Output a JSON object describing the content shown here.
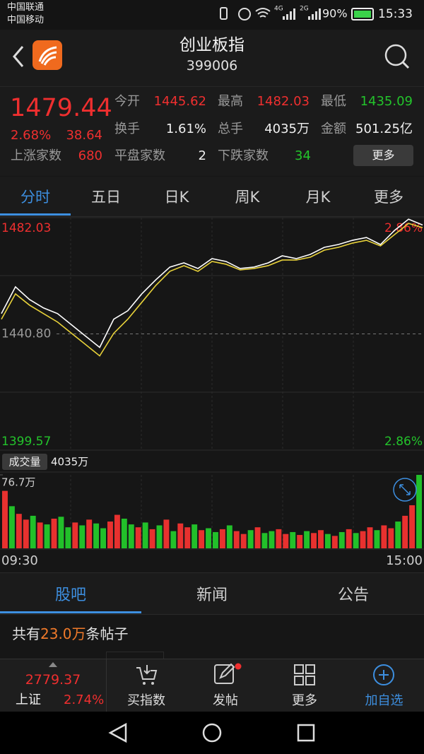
{
  "status_bar": {
    "carriers": [
      "中国联通",
      "中国移动"
    ],
    "network_labels": [
      "4G",
      "2G"
    ],
    "battery": "90%",
    "time": "15:33"
  },
  "header": {
    "title": "创业板指",
    "code": "399006"
  },
  "quote": {
    "price": "1479.44",
    "change_percent": "2.68%",
    "change": "38.64",
    "stats": [
      [
        "今开",
        "1445.62"
      ],
      [
        "最高",
        "1482.03"
      ],
      [
        "最低",
        "1435.09"
      ],
      [
        "换手",
        "1.61%"
      ],
      [
        "总手",
        "4035万"
      ],
      [
        "金额",
        "501.25亿"
      ]
    ],
    "breadth": [
      [
        "上涨家数",
        "680"
      ],
      [
        "平盘家数",
        "2"
      ],
      [
        "下跌家数",
        "34"
      ]
    ],
    "more": "更多"
  },
  "period_tabs": [
    "分时",
    "五日",
    "日K",
    "周K",
    "月K",
    "更多"
  ],
  "volume_label": "成交量",
  "volume_total": "4035万",
  "chart_data": [
    {
      "type": "line",
      "categories": [
        "09:30",
        null,
        null,
        null,
        null,
        null,
        null,
        null,
        null,
        null,
        null,
        null,
        null,
        null,
        null,
        null,
        null,
        null,
        null,
        null,
        null,
        null,
        null,
        null,
        null,
        null,
        null,
        null,
        null,
        null,
        "15:00"
      ],
      "series": [
        {
          "color": "#ffffff",
          "values": [
            1448,
            1457.5,
            1453,
            1450,
            1448,
            1444,
            1440,
            1436,
            1446,
            1449,
            1455,
            1460,
            1464.5,
            1466,
            1464,
            1467.5,
            1466.5,
            1464,
            1464.5,
            1466,
            1468.5,
            1467.5,
            1469,
            1471.5,
            1472.5,
            1474,
            1475,
            1472.5,
            1477.5,
            1481.5,
            1479.44
          ]
        },
        {
          "color": "#e8d23a",
          "values": [
            1446,
            1455,
            1451,
            1448,
            1445,
            1441,
            1437,
            1433,
            1441,
            1446,
            1452,
            1458,
            1463,
            1465,
            1463,
            1466.5,
            1465.5,
            1463.5,
            1464,
            1465,
            1467,
            1467,
            1468,
            1470.5,
            1471.5,
            1473,
            1474,
            1472,
            1476,
            1480,
            1478.5
          ]
        }
      ],
      "ylim": [
        1399.57,
        1482.03
      ],
      "yticks": [
        1482.03,
        {
          "value": 1440.8,
          "label": "1440.80"
        },
        1399.57
      ],
      "y2lim": [
        -2.86,
        2.86
      ],
      "y2ticks": [
        {
          "value": 2.86,
          "label": "2.86%"
        },
        {
          "value": -2.86,
          "label": "2.86%"
        }
      ]
    },
    {
      "type": "bar",
      "values": [
        60,
        44,
        36,
        30,
        34,
        27,
        25,
        31,
        33,
        22,
        27,
        24,
        30,
        26,
        21,
        28,
        35,
        31,
        25,
        22,
        27,
        20,
        24,
        30,
        18,
        26,
        22,
        25,
        19,
        21,
        17,
        20,
        24,
        18,
        15,
        19,
        22,
        16,
        18,
        20,
        15,
        17,
        14,
        18,
        16,
        19,
        15,
        13,
        17,
        20,
        16,
        18,
        22,
        19,
        24,
        21,
        28,
        34,
        45,
        76.7
      ],
      "colors": [
        "#e8312f",
        "#22c02a",
        "#e8312f",
        "#e8312f",
        "#22c02a",
        "#e8312f",
        "#22c02a",
        "#e8312f",
        "#22c02a",
        "#22c02a",
        "#e8312f",
        "#22c02a",
        "#e8312f",
        "#22c02a",
        "#22c02a",
        "#e8312f",
        "#e8312f",
        "#22c02a",
        "#22c02a",
        "#e8312f",
        "#22c02a",
        "#e8312f",
        "#22c02a",
        "#e8312f",
        "#22c02a",
        "#e8312f",
        "#e8312f",
        "#22c02a",
        "#e8312f",
        "#22c02a",
        "#22c02a",
        "#e8312f",
        "#22c02a",
        "#e8312f",
        "#e8312f",
        "#22c02a",
        "#e8312f",
        "#22c02a",
        "#22c02a",
        "#e8312f",
        "#e8312f",
        "#22c02a",
        "#e8312f",
        "#22c02a",
        "#e8312f",
        "#e8312f",
        "#22c02a",
        "#e8312f",
        "#22c02a",
        "#e8312f",
        "#22c02a",
        "#e8312f",
        "#e8312f",
        "#22c02a",
        "#e8312f",
        "#e8312f",
        "#22c02a",
        "#e8312f",
        "#e8312f",
        "#22c02a"
      ],
      "ylim": [
        0,
        76.7
      ],
      "yticks": [
        {
          "value": 76.7,
          "label": "76.7万"
        }
      ]
    }
  ],
  "news_tabs": [
    "股吧",
    "新闻",
    "公告"
  ],
  "posts": {
    "prefix": "共有",
    "count": "23.0万",
    "suffix": "条帖子"
  },
  "bottom_bar": {
    "index_value": "2779.37",
    "index_name": "上证",
    "index_change": "2.74%",
    "actions": [
      "买指数",
      "发帖",
      "更多",
      "加自选"
    ]
  }
}
